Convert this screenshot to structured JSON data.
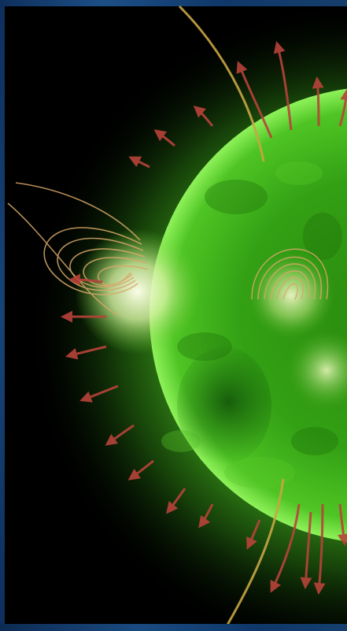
{
  "image": {
    "subject": "sun-disk",
    "colors": {
      "background": "#000000",
      "sun_core": "#2f8f10",
      "sun_mid": "#3fb51c",
      "sun_limb": "#8ff25a",
      "corona": "#3a9a1a",
      "active_region": "#f2f8d0",
      "field_loops": "#d8a86a",
      "outflow_arrows": "#b8433a",
      "open_field_line": "#c9a544",
      "frame_strip": "#1a4a80"
    }
  }
}
